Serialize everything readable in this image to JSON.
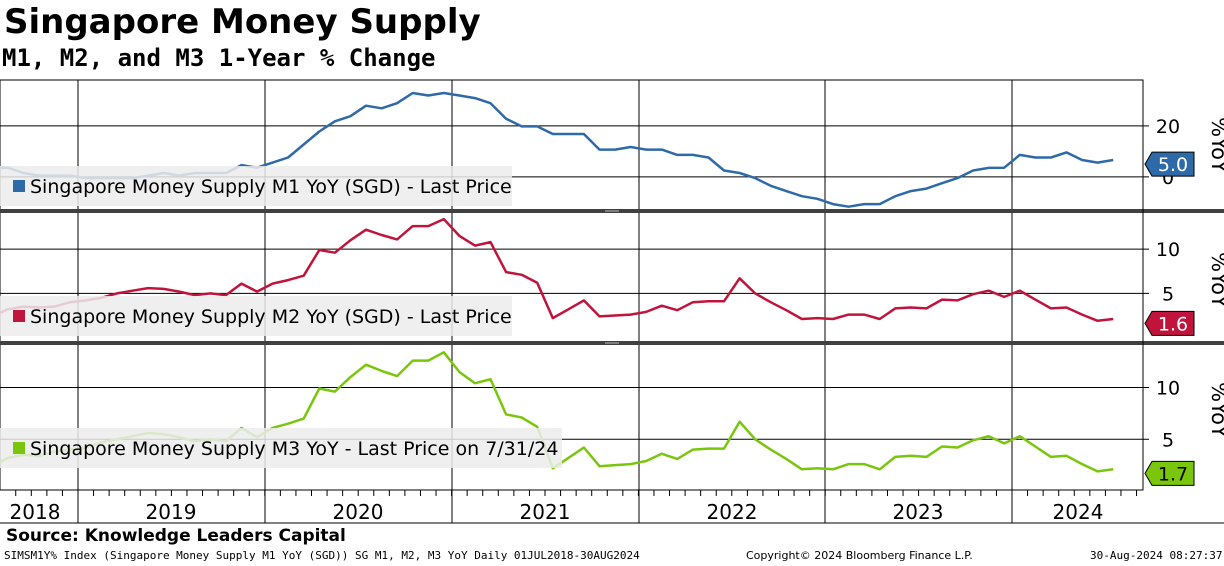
{
  "title": "Singapore Money Supply",
  "subtitle": "M1, M2, and M3 1-Year % Change",
  "source": "Source: Knowledge Leaders Capital",
  "footer": {
    "left": "SIMSM1Y% Index (Singapore Money Supply M1 YoY (SGD)) SG M1, M2, M3 YoY  Daily 01JUL2018-30AUG2024",
    "middle": "Copyright© 2024 Bloomberg Finance L.P.",
    "right": "30-Aug-2024 08:27:37"
  },
  "chart_data": {
    "type": "line",
    "x_tick_labels": [
      "2018",
      "2019",
      "2020",
      "2021",
      "2022",
      "2023",
      "2024"
    ],
    "panels": [
      {
        "name": "Singapore Money Supply M1 YoY (SGD) - Last Price",
        "color": "#2e6aa8",
        "axis_label": "%YoY",
        "yticks": [
          20,
          0
        ],
        "ylim": [
          -13,
          38
        ],
        "last_value_label": "5.0",
        "dates": [
          "2018-07",
          "2018-08",
          "2018-09",
          "2018-10",
          "2018-11",
          "2018-12",
          "2019-01",
          "2019-02",
          "2019-03",
          "2019-04",
          "2019-05",
          "2019-06",
          "2019-07",
          "2019-08",
          "2019-09",
          "2019-10",
          "2019-11",
          "2019-12",
          "2020-01",
          "2020-02",
          "2020-03",
          "2020-04",
          "2020-05",
          "2020-06",
          "2020-07",
          "2020-08",
          "2020-09",
          "2020-10",
          "2020-11",
          "2020-12",
          "2021-01",
          "2021-02",
          "2021-03",
          "2021-04",
          "2021-05",
          "2021-06",
          "2021-07",
          "2021-08",
          "2021-09",
          "2021-10",
          "2021-11",
          "2021-12",
          "2022-01",
          "2022-02",
          "2022-03",
          "2022-04",
          "2022-05",
          "2022-06",
          "2022-07",
          "2022-08",
          "2022-09",
          "2022-10",
          "2022-11",
          "2022-12",
          "2023-01",
          "2023-02",
          "2023-03",
          "2023-04",
          "2023-05",
          "2023-06",
          "2023-07",
          "2023-08",
          "2023-09",
          "2023-10",
          "2023-11",
          "2023-12",
          "2024-01",
          "2024-02",
          "2024-03",
          "2024-04",
          "2024-05",
          "2024-06",
          "2024-07"
        ],
        "values": [
          3.6,
          3.6,
          1.5,
          0.5,
          0.5,
          0.5,
          -0.5,
          -0.5,
          -0.5,
          -0.5,
          0.5,
          1.5,
          0.5,
          1.5,
          1.5,
          1.5,
          4.6,
          3.6,
          5.6,
          7.6,
          12.7,
          17.8,
          21.8,
          23.8,
          27.9,
          26.9,
          28.9,
          32.9,
          31.9,
          32.9,
          31.9,
          30.9,
          28.9,
          22.8,
          19.8,
          19.8,
          16.8,
          16.8,
          16.8,
          10.7,
          10.7,
          11.7,
          10.7,
          10.7,
          8.6,
          8.6,
          7.6,
          2.5,
          1.5,
          -0.5,
          -3.5,
          -5.6,
          -7.6,
          -8.6,
          -10.7,
          -11.7,
          -10.7,
          -10.7,
          -7.6,
          -5.6,
          -4.6,
          -2.5,
          -0.5,
          2.5,
          3.5,
          3.6,
          8.6,
          7.6,
          7.6,
          9.6,
          6.6,
          5.6,
          6.6
        ],
        "last_value": 5.0
      },
      {
        "name": "Singapore Money Supply M2 YoY (SGD) - Last Price",
        "color": "#c0143c",
        "axis_label": "%YoY",
        "yticks": [
          10,
          5
        ],
        "ylim": [
          -0.5,
          14.2
        ],
        "last_value_label": "1.6",
        "dates": [
          "2018-07",
          "2018-08",
          "2018-09",
          "2018-10",
          "2018-11",
          "2018-12",
          "2019-01",
          "2019-02",
          "2019-03",
          "2019-04",
          "2019-05",
          "2019-06",
          "2019-07",
          "2019-08",
          "2019-09",
          "2019-10",
          "2019-11",
          "2019-12",
          "2020-01",
          "2020-02",
          "2020-03",
          "2020-04",
          "2020-05",
          "2020-06",
          "2020-07",
          "2020-08",
          "2020-09",
          "2020-10",
          "2020-11",
          "2020-12",
          "2021-01",
          "2021-02",
          "2021-03",
          "2021-04",
          "2021-05",
          "2021-06",
          "2021-07",
          "2021-08",
          "2021-09",
          "2021-10",
          "2021-11",
          "2021-12",
          "2022-01",
          "2022-02",
          "2022-03",
          "2022-04",
          "2022-05",
          "2022-06",
          "2022-07",
          "2022-08",
          "2022-09",
          "2022-10",
          "2022-11",
          "2022-12",
          "2023-01",
          "2023-02",
          "2023-03",
          "2023-04",
          "2023-05",
          "2023-06",
          "2023-07",
          "2023-08",
          "2023-09",
          "2023-10",
          "2023-11",
          "2023-12",
          "2024-01",
          "2024-02",
          "2024-03",
          "2024-04",
          "2024-05",
          "2024-06",
          "2024-07"
        ],
        "values": [
          2.4,
          3.2,
          3.5,
          3.4,
          3.5,
          4.0,
          4.2,
          4.5,
          5.0,
          5.3,
          5.6,
          5.5,
          5.2,
          4.8,
          5.0,
          4.8,
          6.1,
          5.2,
          6.1,
          6.5,
          7.0,
          9.9,
          9.6,
          11.0,
          12.2,
          11.6,
          11.1,
          12.6,
          12.6,
          13.4,
          11.5,
          10.4,
          10.8,
          7.4,
          7.1,
          6.2,
          2.2,
          3.2,
          4.2,
          2.4,
          2.5,
          2.6,
          2.9,
          3.6,
          3.1,
          4.0,
          4.1,
          4.1,
          6.7,
          5.0,
          4.0,
          3.1,
          2.1,
          2.2,
          2.1,
          2.6,
          2.6,
          2.1,
          3.3,
          3.4,
          3.3,
          4.3,
          4.2,
          4.9,
          5.3,
          4.6,
          5.3,
          4.3,
          3.3,
          3.4,
          2.6,
          1.9,
          2.1
        ],
        "last_value": 1.6
      },
      {
        "name": "Singapore Money Supply M3 YoY - Last Price on 7/31/24",
        "color": "#7ac60d",
        "axis_label": "%YoY",
        "yticks": [
          10,
          5
        ],
        "ylim": [
          0.1,
          14.2
        ],
        "last_value_label": "1.7",
        "dates": [
          "2018-07",
          "2018-08",
          "2018-09",
          "2018-10",
          "2018-11",
          "2018-12",
          "2019-01",
          "2019-02",
          "2019-03",
          "2019-04",
          "2019-05",
          "2019-06",
          "2019-07",
          "2019-08",
          "2019-09",
          "2019-10",
          "2019-11",
          "2019-12",
          "2020-01",
          "2020-02",
          "2020-03",
          "2020-04",
          "2020-05",
          "2020-06",
          "2020-07",
          "2020-08",
          "2020-09",
          "2020-10",
          "2020-11",
          "2020-12",
          "2021-01",
          "2021-02",
          "2021-03",
          "2021-04",
          "2021-05",
          "2021-06",
          "2021-07",
          "2021-08",
          "2021-09",
          "2021-10",
          "2021-11",
          "2021-12",
          "2022-01",
          "2022-02",
          "2022-03",
          "2022-04",
          "2022-05",
          "2022-06",
          "2022-07",
          "2022-08",
          "2022-09",
          "2022-10",
          "2022-11",
          "2022-12",
          "2023-01",
          "2023-02",
          "2023-03",
          "2023-04",
          "2023-05",
          "2023-06",
          "2023-07",
          "2023-08",
          "2023-09",
          "2023-10",
          "2023-11",
          "2023-12",
          "2024-01",
          "2024-02",
          "2024-03",
          "2024-04",
          "2024-05",
          "2024-06",
          "2024-07"
        ],
        "values": [
          2.4,
          3.2,
          3.5,
          3.4,
          3.8,
          4.0,
          4.2,
          4.7,
          5.0,
          5.3,
          5.6,
          5.5,
          5.2,
          4.8,
          5.0,
          4.8,
          6.1,
          5.2,
          6.1,
          6.5,
          7.0,
          9.9,
          9.6,
          11.0,
          12.2,
          11.6,
          11.1,
          12.6,
          12.6,
          13.4,
          11.5,
          10.4,
          10.8,
          7.4,
          7.1,
          6.2,
          2.2,
          3.2,
          4.2,
          2.4,
          2.5,
          2.6,
          2.9,
          3.6,
          3.1,
          4.0,
          4.1,
          4.1,
          6.7,
          5.0,
          4.0,
          3.1,
          2.1,
          2.2,
          2.1,
          2.6,
          2.6,
          2.1,
          3.3,
          3.4,
          3.3,
          4.3,
          4.2,
          4.9,
          5.3,
          4.6,
          5.3,
          4.3,
          3.3,
          3.4,
          2.6,
          1.9,
          2.1
        ],
        "last_value": 1.7
      }
    ]
  }
}
